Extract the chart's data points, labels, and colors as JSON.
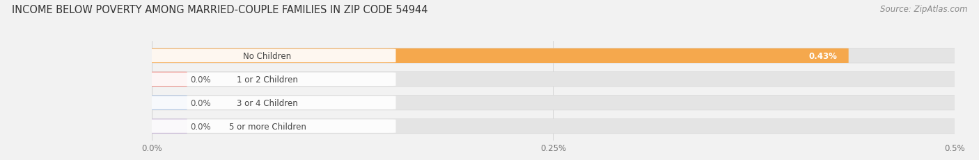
{
  "title": "INCOME BELOW POVERTY AMONG MARRIED-COUPLE FAMILIES IN ZIP CODE 54944",
  "source": "Source: ZipAtlas.com",
  "categories": [
    "No Children",
    "1 or 2 Children",
    "3 or 4 Children",
    "5 or more Children"
  ],
  "values": [
    0.43,
    0.0,
    0.0,
    0.0
  ],
  "bar_colors": [
    "#f5a84d",
    "#f0908a",
    "#a8c0e0",
    "#c9b8d8"
  ],
  "xlim": [
    0,
    0.5
  ],
  "xticks": [
    0.0,
    0.25,
    0.5
  ],
  "xtick_labels": [
    "0.0%",
    "0.25%",
    "0.5%"
  ],
  "value_labels": [
    "0.43%",
    "0.0%",
    "0.0%",
    "0.0%"
  ],
  "background_color": "#f2f2f2",
  "bar_bg_color": "#e4e4e4",
  "bar_bg_color_light": "#ebebeb",
  "title_fontsize": 10.5,
  "source_fontsize": 8.5,
  "label_fontsize": 8.5,
  "value_fontsize": 8.5,
  "tick_fontsize": 8.5
}
